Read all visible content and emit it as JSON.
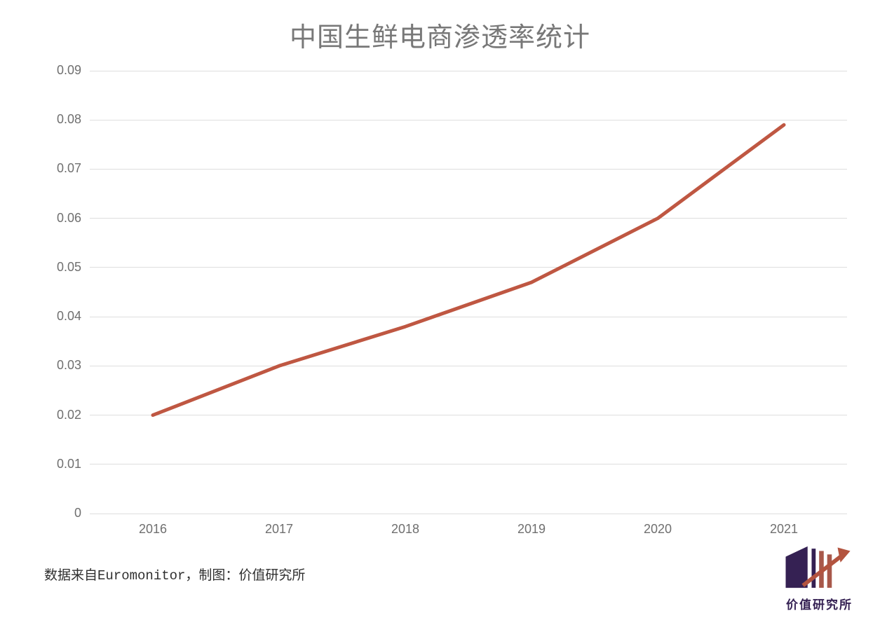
{
  "chart_data": {
    "type": "line",
    "title": "中国生鲜电商渗透率统计",
    "categories": [
      "2016",
      "2017",
      "2018",
      "2019",
      "2020",
      "2021"
    ],
    "values": [
      0.02,
      0.03,
      0.038,
      0.047,
      0.06,
      0.079
    ],
    "ylim": [
      0,
      0.09
    ],
    "ytick_step": 0.01,
    "ytick_labels": [
      "0",
      "0.01",
      "0.02",
      "0.03",
      "0.04",
      "0.05",
      "0.06",
      "0.07",
      "0.08",
      "0.09"
    ],
    "grid": true,
    "legend": "none",
    "line_color": "#bf5742",
    "grid_color": "#dedede",
    "axis_label_color": "#6f6f6f",
    "title_color": "#787878"
  },
  "footer": {
    "source_text": "数据来自Euromonitor，制图：价值研究所"
  },
  "logo": {
    "text": "价值研究所",
    "primary_color": "#352153",
    "accent_color": "#b3543f"
  }
}
